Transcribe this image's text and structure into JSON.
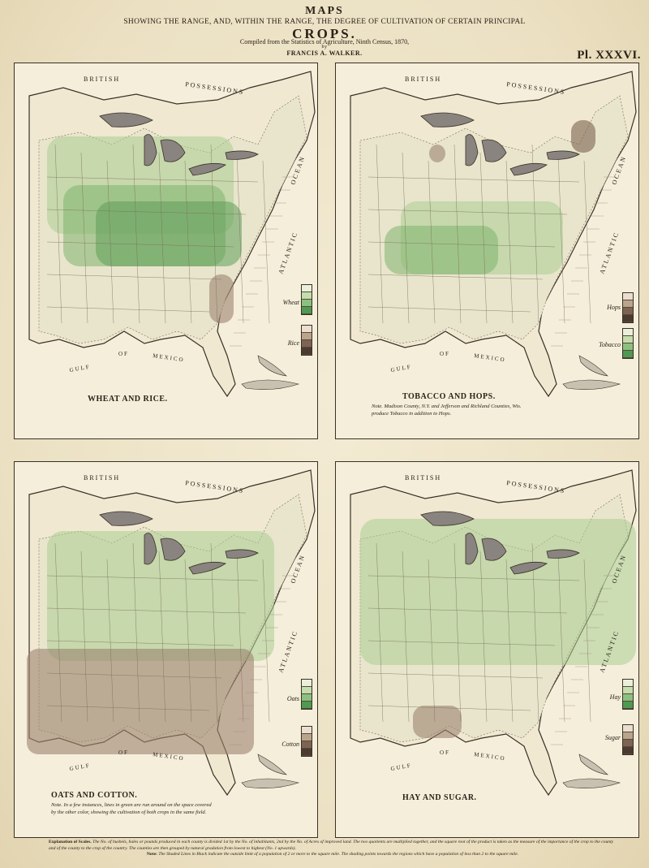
{
  "header": {
    "title": "MAPS",
    "subtitle": "SHOWING THE RANGE, AND, WITHIN THE RANGE, THE DEGREE OF CULTIVATION OF CERTAIN PRINCIPAL",
    "main": "CROPS.",
    "compiled": "Compiled from the Statistics of Agriculture, Ninth Census, 1870,",
    "by": "by",
    "author": "FRANCIS A. WALKER.",
    "plate": "Pl. XXXVI."
  },
  "common_labels": {
    "british": "BRITISH",
    "possessions": "POSSESSIONS",
    "atlantic": "ATLANTIC",
    "ocean": "OCEAN",
    "gulf": "GULF",
    "of": "OF",
    "mexico": "MEXICO"
  },
  "panels": [
    {
      "title": "WHEAT AND RICE.",
      "note": "",
      "legends": [
        {
          "label": "Wheat",
          "colors": [
            "#e8f0dc",
            "#c4dcae",
            "#8cc080",
            "#4e9a52"
          ]
        },
        {
          "label": "Rice",
          "colors": [
            "#eadfcf",
            "#bba48e",
            "#7d6452",
            "#4b3a30"
          ]
        }
      ]
    },
    {
      "title": "TOBACCO AND HOPS.",
      "note": "Note. Madison County, N.Y. and Jefferson and Richland Counties, Wis. produce Tobacco in addition to Hops.",
      "legends": [
        {
          "label": "Hops",
          "colors": [
            "#eadfcf",
            "#bba48e",
            "#7d6452",
            "#4b3a30"
          ]
        },
        {
          "label": "Tobacco",
          "colors": [
            "#e8f0dc",
            "#c4dcae",
            "#8cc080",
            "#4e9a52"
          ]
        }
      ]
    },
    {
      "title": "OATS AND COTTON.",
      "note": "Note. In a few instances, lines in green are run around on the space covered by the other color, showing the cultivation of both crops in the same field.",
      "legends": [
        {
          "label": "Oats",
          "colors": [
            "#e8f0dc",
            "#c4dcae",
            "#8cc080",
            "#4e9a52"
          ]
        },
        {
          "label": "Cotton",
          "colors": [
            "#eadfcf",
            "#bba48e",
            "#7d6452",
            "#4b3a30"
          ]
        }
      ]
    },
    {
      "title": "HAY AND SUGAR.",
      "note": "",
      "legends": [
        {
          "label": "Hay",
          "colors": [
            "#e8f0dc",
            "#c4dcae",
            "#8cc080",
            "#4e9a52"
          ]
        },
        {
          "label": "Sugar",
          "colors": [
            "#eadfcf",
            "#bba48e",
            "#7d6452",
            "#4b3a30"
          ]
        }
      ]
    }
  ],
  "footer": {
    "lead": "Explanation of Scales.",
    "line1": "The No. of bushels, bales or pounds produced in each county is divided 1st by the No. of inhabitants, 2nd by the No. of Acres of improved land. The two quotients are multiplied together, and the square root of the product is taken as the measure of the importance of the crop to the county and of the county to the crop of the country. The counties are then grouped by natural gradation from lowest to highest (No. 1 upwards).",
    "note_lead": "Note:",
    "line2": "The Shaded Lines in Black indicate the outside limit of a population of 2 or more to the square mile. The shading points towards the regions which have a population of less than 2 to the square mile."
  }
}
